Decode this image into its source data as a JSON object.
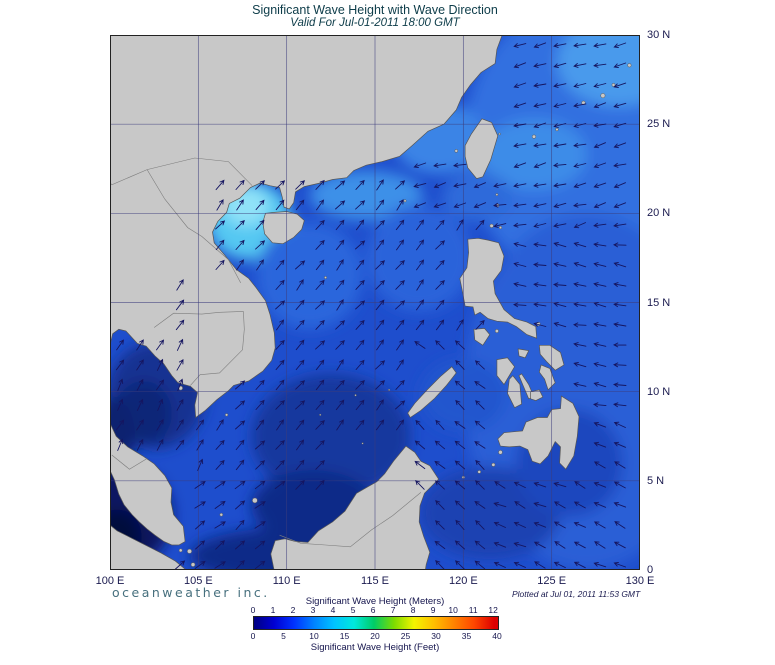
{
  "title": "Significant Wave Height with Wave Direction",
  "subtitle": "Valid For Jul-01-2011 18:00 GMT",
  "branding": {
    "logo": "oceanweather inc.",
    "plotted": "Plotted at Jul 01, 2011 11:53 GMT"
  },
  "axes": {
    "lon_range": [
      100,
      130
    ],
    "lat_range": [
      0,
      30
    ],
    "lon_ticks": [
      {
        "value": 100,
        "label": "100 E"
      },
      {
        "value": 105,
        "label": "105 E"
      },
      {
        "value": 110,
        "label": "110 E"
      },
      {
        "value": 115,
        "label": "115 E"
      },
      {
        "value": 120,
        "label": "120 E"
      },
      {
        "value": 125,
        "label": "125 E"
      },
      {
        "value": 130,
        "label": "130 E"
      }
    ],
    "lat_ticks": [
      {
        "value": 30,
        "label": "30 N"
      },
      {
        "value": 25,
        "label": "25 N"
      },
      {
        "value": 20,
        "label": "20 N"
      },
      {
        "value": 15,
        "label": "15 N"
      },
      {
        "value": 10,
        "label": "10 N"
      },
      {
        "value": 5,
        "label": "5 N"
      },
      {
        "value": 0,
        "label": "0"
      }
    ],
    "grid_lon": [
      105,
      110,
      115,
      120,
      125
    ],
    "grid_lat": [
      5,
      10,
      15,
      20,
      25
    ]
  },
  "legend": {
    "meters_label": "Significant Wave Height (Meters)",
    "feet_label": "Significant Wave Height (Feet)",
    "meters_ticks": [
      0,
      1,
      2,
      3,
      4,
      5,
      6,
      7,
      8,
      9,
      10,
      11,
      12
    ],
    "feet_ticks": [
      0,
      5,
      10,
      15,
      20,
      25,
      30,
      35,
      40
    ],
    "bar_max_meters": 12.192,
    "colors": [
      "#000082",
      "#0000d2",
      "#0032ff",
      "#0082ff",
      "#00c3ff",
      "#00e8dc",
      "#00cc66",
      "#7ddb00",
      "#f4f400",
      "#ffbe00",
      "#ff8200",
      "#ff4600",
      "#dc0000"
    ]
  },
  "map": {
    "ocean_base": "#1e4ecd",
    "land_color": "#c8c8c8",
    "coast_color": "#555555",
    "border_color": "#7d7d7d",
    "grid_color": "#3c3c7c",
    "arrow_color": "#151560",
    "frame_color": "#222222",
    "field_patches": [
      [
        127,
        24,
        7,
        8,
        "#3070e0"
      ],
      [
        127,
        10,
        7,
        10,
        "#2a5ed6"
      ],
      [
        128.8,
        28.5,
        3.5,
        2.5,
        "#4a9aec"
      ],
      [
        124,
        23.3,
        3,
        2,
        "#3e8ce8"
      ],
      [
        118.6,
        24.2,
        2.6,
        2,
        "#3a84e6"
      ],
      [
        114.5,
        21,
        3.2,
        1.4,
        "#3e90e8"
      ],
      [
        107.9,
        19.6,
        2.4,
        2.2,
        "#54c8f2"
      ],
      [
        107.7,
        20.4,
        1.3,
        1.1,
        "#90e2f8"
      ],
      [
        111.3,
        16.5,
        3,
        3,
        "#2c66dc"
      ],
      [
        117.5,
        17.5,
        3,
        3,
        "#2b64da"
      ],
      [
        112.5,
        7.5,
        4.5,
        3.5,
        "#16389e"
      ],
      [
        111.5,
        3.6,
        3.5,
        2,
        "#0e2a88"
      ],
      [
        102.6,
        9.8,
        2.8,
        3,
        "#143392"
      ],
      [
        101.9,
        8.8,
        1.6,
        1.8,
        "#0e2578"
      ],
      [
        100.9,
        3,
        2.6,
        2.8,
        "#0a1462"
      ],
      [
        100.4,
        1.8,
        1.4,
        1.6,
        "#04093e"
      ],
      [
        100.2,
        7.5,
        1.2,
        2.2,
        "#102470"
      ],
      [
        110.5,
        0.8,
        6,
        1.6,
        "#0e2a88"
      ],
      [
        121.5,
        3.2,
        4,
        2.6,
        "#1a42b2"
      ],
      [
        120,
        9.8,
        2.4,
        2,
        "#2456ce"
      ],
      [
        120.8,
        20.9,
        2,
        1.4,
        "#2e6ada"
      ],
      [
        126,
        6,
        3,
        3,
        "#1c46be"
      ]
    ],
    "direction_regions": [
      {
        "lon": [
          100,
          103.2
        ],
        "lat": [
          0,
          6.5
        ],
        "deg": 315
      },
      {
        "lon": [
          121.7,
          130.5
        ],
        "lat": [
          19,
          30
        ],
        "deg": 255
      },
      {
        "lon": [
          121.7,
          130.5
        ],
        "lat": [
          9,
          19
        ],
        "deg": 280
      },
      {
        "lon": [
          121.7,
          130.5
        ],
        "lat": [
          0,
          9
        ],
        "deg": 295
      },
      {
        "lon": [
          117.5,
          121.7
        ],
        "lat": [
          19.5,
          23.4
        ],
        "deg": 255
      },
      {
        "lon": [
          117,
          121.7
        ],
        "lat": [
          0,
          12.7
        ],
        "deg": 310
      },
      {
        "lon": [
          100,
          106
        ],
        "lat": [
          5,
          14
        ],
        "deg": 30
      },
      {
        "lon": [
          100,
          121.7
        ],
        "lat": [
          0,
          5
        ],
        "deg": 50
      },
      {
        "lon": [
          100,
          121.7
        ],
        "lat": [
          5,
          23.4
        ],
        "deg": 40
      },
      {
        "lon": [
          100,
          130.5
        ],
        "lat": [
          23.4,
          30
        ],
        "deg": 245
      }
    ],
    "default_direction_deg": 270
  },
  "chart_data": {
    "type": "heatmap",
    "field": "significant_wave_height",
    "units": [
      "meters",
      "feet"
    ],
    "title": "Significant Wave Height with Wave Direction",
    "valid_time": "Jul-01-2011 18:00 GMT",
    "lon_range_deg_e": [
      100,
      130
    ],
    "lat_range_deg_n": [
      0,
      30
    ],
    "colorbar_meters": [
      0,
      1,
      2,
      3,
      4,
      5,
      6,
      7,
      8,
      9,
      10,
      11,
      12
    ],
    "colorbar_feet": [
      0,
      5,
      10,
      15,
      20,
      25,
      30,
      35,
      40
    ],
    "approx_values_m": [
      {
        "region": "Gulf of Tonkin",
        "value": 3.5
      },
      {
        "region": "Central South China Sea",
        "value": 2
      },
      {
        "region": "Southern South China Sea / NW Borneo",
        "value": 1.5
      },
      {
        "region": "Gulf of Thailand",
        "value": 1
      },
      {
        "region": "Malacca Strait",
        "value": 0.3
      },
      {
        "region": "Philippine Sea east of Philippines",
        "value": 2
      },
      {
        "region": "East of Taiwan / Ryukyu",
        "value": 2.5
      }
    ],
    "wave_direction": [
      {
        "region": "South China Sea",
        "toward": "NE"
      },
      {
        "region": "Philippine Sea / Pacific",
        "toward": "W"
      },
      {
        "region": "Malacca Strait",
        "toward": "NW"
      }
    ]
  }
}
